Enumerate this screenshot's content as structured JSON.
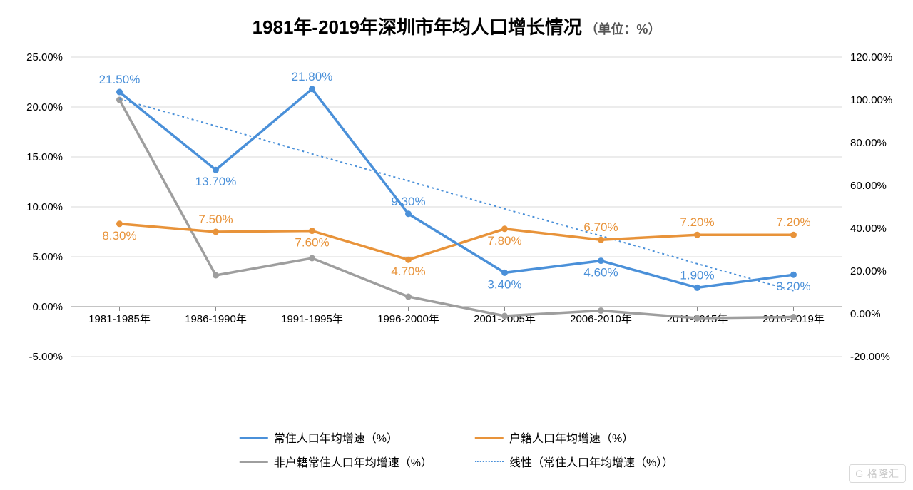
{
  "chart": {
    "type": "line",
    "title_main": "1981年-2019年深圳市年均人口增长情况",
    "title_unit": "（单位：%）",
    "title_fontsize_main": 26,
    "title_fontsize_unit": 18,
    "background_color": "#ffffff",
    "grid_color": "#d9d9d9",
    "axis_text_color": "#000000",
    "axis_fontsize": 15,
    "categories": [
      "1981-1985年",
      "1986-1990年",
      "1991-1995年",
      "1996-2000年",
      "2001-2005年",
      "2006-2010年",
      "2011-2015年",
      "2016-2019年"
    ],
    "left_axis": {
      "min": -5,
      "max": 25,
      "step": 5,
      "suffix": "%",
      "format_decimals": 2
    },
    "right_axis": {
      "min": -20,
      "max": 120,
      "step": 20,
      "suffix": "%",
      "format_decimals": 2
    },
    "series": [
      {
        "key": "resident",
        "name": "常住人口年均增速（%）",
        "color": "#4a90d9",
        "line_width": 3.5,
        "axis": "left",
        "dash": "",
        "marker": true,
        "values": [
          21.5,
          13.7,
          21.8,
          9.3,
          3.4,
          4.6,
          1.9,
          3.2
        ],
        "label_color": "#4a90d9",
        "label_positions": [
          "above",
          "below",
          "above",
          "above",
          "below",
          "below",
          "above",
          "below"
        ]
      },
      {
        "key": "hukou",
        "name": "户籍人口年均增速（%）",
        "color": "#e8933a",
        "line_width": 3.5,
        "axis": "left",
        "dash": "",
        "marker": true,
        "values": [
          8.3,
          7.5,
          7.6,
          4.7,
          7.8,
          6.7,
          7.2,
          7.2
        ],
        "label_color": "#e8933a",
        "label_positions": [
          "below",
          "above",
          "below",
          "below",
          "below",
          "above",
          "above",
          "above"
        ]
      },
      {
        "key": "nonhukou",
        "name": "非户籍常住人口年均增速（%）",
        "color": "#9e9e9e",
        "line_width": 3.5,
        "axis": "right",
        "dash": "",
        "marker": true,
        "values": [
          100.0,
          18.0,
          26.0,
          8.0,
          -1.0,
          1.5,
          -2.0,
          -1.5
        ],
        "label_color": "#9e9e9e",
        "show_labels": false
      },
      {
        "key": "trend",
        "name": "线性（常住人口年均增速（%））",
        "color": "#4a90d9",
        "line_width": 2,
        "axis": "left",
        "dash": "3,4",
        "marker": false,
        "values": [
          20.8,
          18.1,
          15.3,
          12.6,
          9.8,
          7.1,
          4.3,
          1.6
        ],
        "show_labels": false
      }
    ],
    "data_label_fontsize": 17,
    "data_label_format_decimals": 2,
    "legend": {
      "fontsize": 16
    },
    "watermark": "G 格隆汇"
  },
  "legend_labels": {
    "resident": "常住人口年均增速（%）",
    "hukou": "户籍人口年均增速（%）",
    "nonhukou": "非户籍常住人口年均增速（%）",
    "trend": "线性（常住人口年均增速（%））"
  }
}
